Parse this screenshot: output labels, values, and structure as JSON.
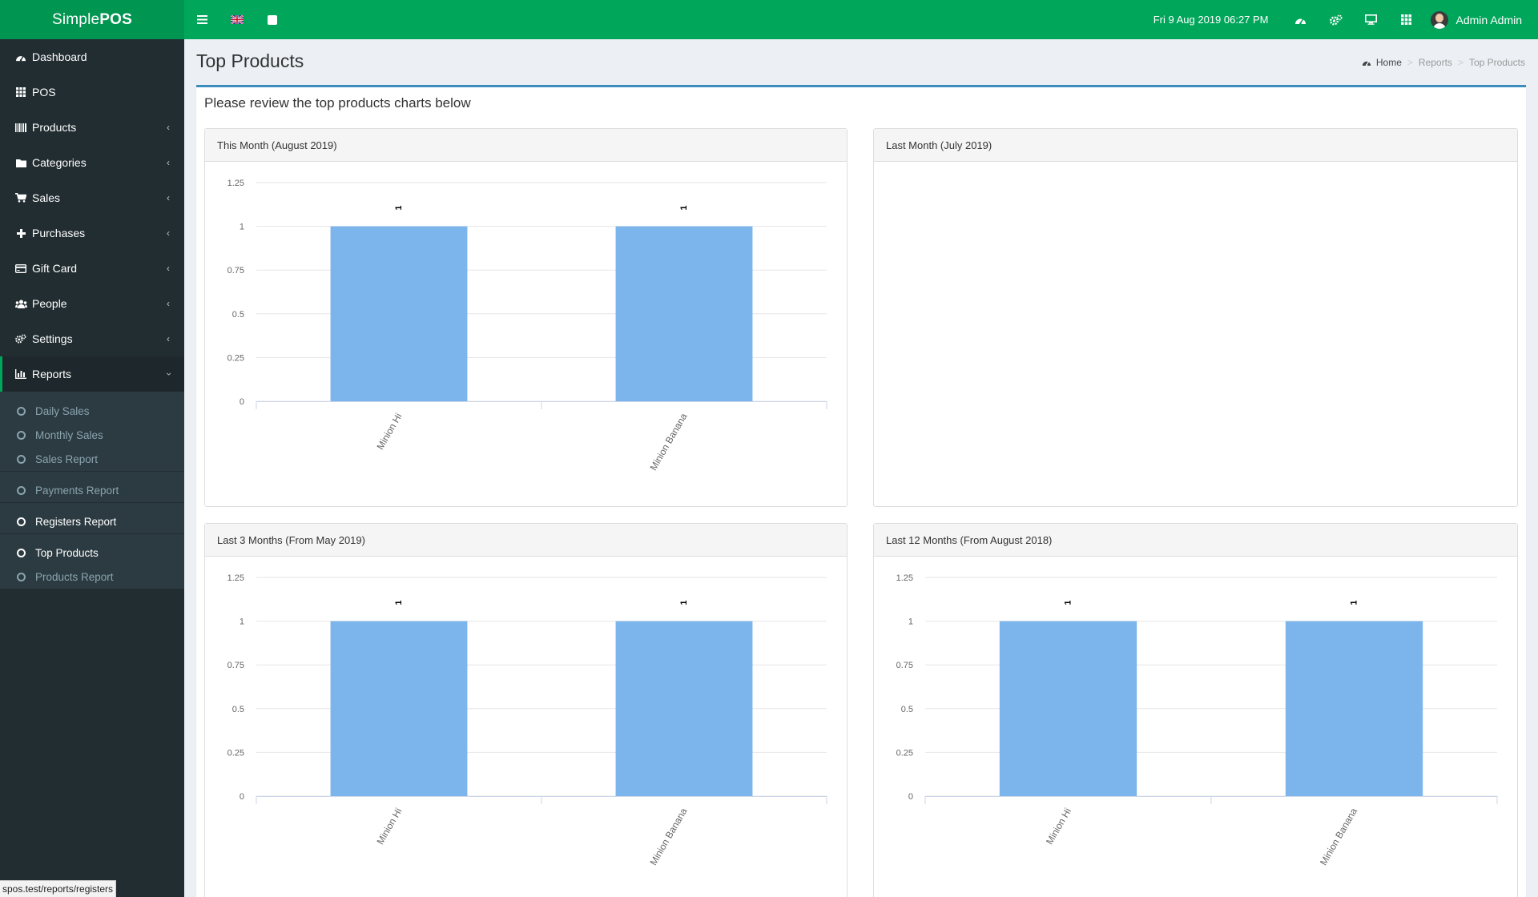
{
  "app": {
    "logo_light": "Simple",
    "logo_bold": "POS",
    "datetime": "Fri 9 Aug 2019 06:27 PM",
    "user_name": "Admin Admin"
  },
  "topbar_icons": [
    "menu-toggle-icon",
    "uk-flag-icon",
    "stop-icon"
  ],
  "topbar_right_icons": [
    "dashboard-icon",
    "cogs-icon",
    "monitor-icon",
    "grid-icon"
  ],
  "sidebar": {
    "items": [
      {
        "label": "Dashboard",
        "icon": "dashboard-icon",
        "has_children": false
      },
      {
        "label": "POS",
        "icon": "grid-icon",
        "has_children": false
      },
      {
        "label": "Products",
        "icon": "barcode-icon",
        "has_children": true
      },
      {
        "label": "Categories",
        "icon": "folder-icon",
        "has_children": true
      },
      {
        "label": "Sales",
        "icon": "cart-icon",
        "has_children": true
      },
      {
        "label": "Purchases",
        "icon": "plus-icon",
        "has_children": true
      },
      {
        "label": "Gift Card",
        "icon": "credit-card-icon",
        "has_children": true
      },
      {
        "label": "People",
        "icon": "users-icon",
        "has_children": true
      },
      {
        "label": "Settings",
        "icon": "cogs-icon",
        "has_children": true
      },
      {
        "label": "Reports",
        "icon": "bar-chart-icon",
        "has_children": true,
        "active": true
      }
    ],
    "reports_sub": [
      {
        "label": "Daily Sales"
      },
      {
        "label": "Monthly Sales"
      },
      {
        "label": "Sales Report"
      },
      {
        "label": "Payments Report"
      },
      {
        "label": "Registers Report",
        "highlight": true
      },
      {
        "label": "Top Products",
        "highlight": true
      },
      {
        "label": "Products Report"
      }
    ]
  },
  "page": {
    "title": "Top Products",
    "breadcrumb": {
      "home": "Home",
      "reports": "Reports",
      "current": "Top Products"
    },
    "intro": "Please review the top products charts below"
  },
  "status_url": "spos.test/reports/registers",
  "colors": {
    "brand": "#00a65a",
    "sidebar": "#222d32",
    "bar": "#7cb5ec"
  },
  "chart_data": [
    {
      "type": "bar",
      "title": "This Month (August 2019)",
      "categories": [
        "Minion Hi",
        "Minion Banana"
      ],
      "values": [
        1,
        1
      ],
      "data_labels": [
        "1",
        "1"
      ],
      "yticks": [
        "0",
        "0.25",
        "0.5",
        "0.75",
        "1",
        "1.25"
      ],
      "ylim": [
        0,
        1.25
      ],
      "grid": true
    },
    {
      "type": "bar",
      "title": "Last Month (July 2019)",
      "categories": [],
      "values": []
    },
    {
      "type": "bar",
      "title": "Last 3 Months (From May 2019)",
      "categories": [
        "Minion Hi",
        "Minion Banana"
      ],
      "values": [
        1,
        1
      ],
      "data_labels": [
        "1",
        "1"
      ],
      "yticks": [
        "0",
        "0.25",
        "0.5",
        "0.75",
        "1",
        "1.25"
      ],
      "ylim": [
        0,
        1.25
      ],
      "grid": true
    },
    {
      "type": "bar",
      "title": "Last 12 Months (From August 2018)",
      "categories": [
        "Minion Hi",
        "Minion Banana"
      ],
      "values": [
        1,
        1
      ],
      "data_labels": [
        "1",
        "1"
      ],
      "yticks": [
        "0",
        "0.25",
        "0.5",
        "0.75",
        "1",
        "1.25"
      ],
      "ylim": [
        0,
        1.25
      ],
      "grid": true
    }
  ]
}
